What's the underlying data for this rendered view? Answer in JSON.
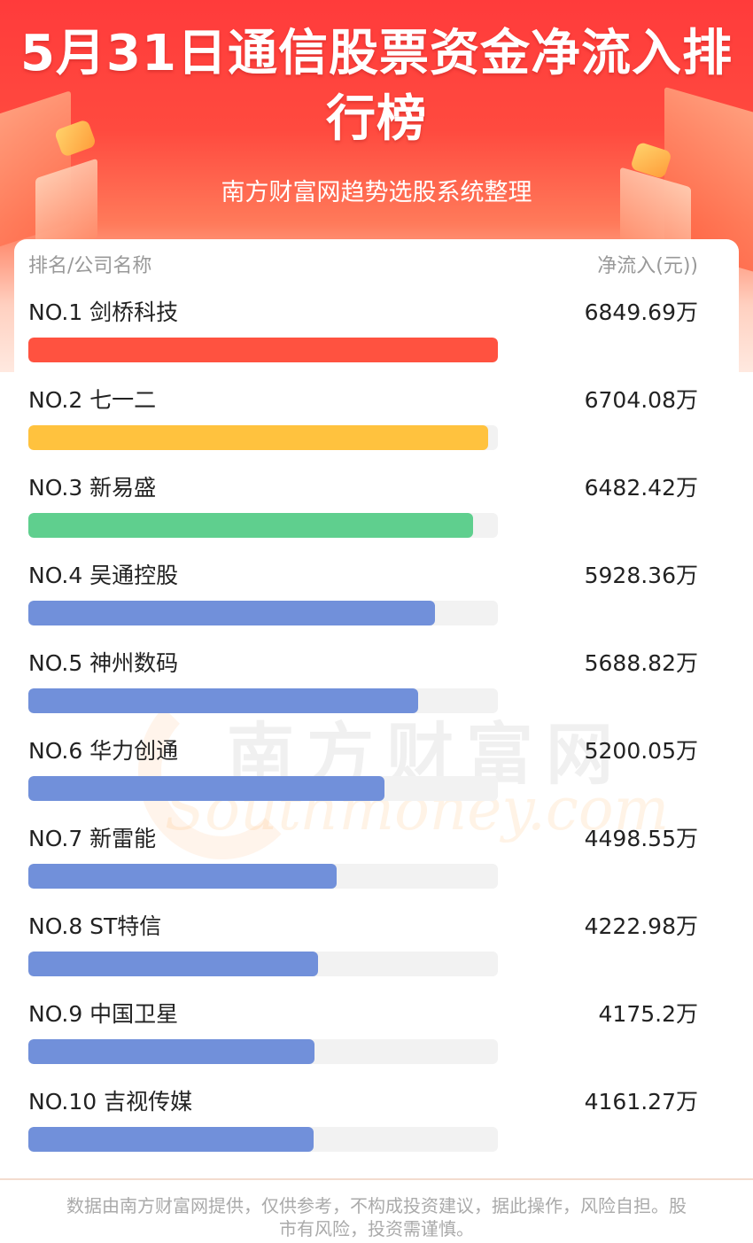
{
  "header": {
    "title": "5月31日通信股票资金净流入排行榜",
    "subtitle": "南方财富网趋势选股系统整理"
  },
  "table": {
    "col_left": "排名/公司名称",
    "col_right": "净流入(元))"
  },
  "watermark": {
    "cn": "南方财富网",
    "en": "Southmoney.com"
  },
  "colors": {
    "rank1": "#ff5240",
    "rank2": "#ffc23e",
    "rank3": "#5fcf8e",
    "others": "#7190da",
    "track": "#f2f2f2"
  },
  "chart_data": {
    "type": "bar",
    "orientation": "horizontal",
    "unit": "万",
    "categories": [
      "NO.1 剑桥科技",
      "NO.2 七一二",
      "NO.3 新易盛",
      "NO.4 吴通控股",
      "NO.5 神州数码",
      "NO.6 华力创通",
      "NO.7 新雷能",
      "NO.8 ST特信",
      "NO.9 中国卫星",
      "NO.10 吉视传媒"
    ],
    "values": [
      6849.69,
      6704.08,
      6482.42,
      5928.36,
      5688.82,
      5200.05,
      4498.55,
      4222.98,
      4175.2,
      4161.27
    ],
    "value_labels": [
      "6849.69万",
      "6704.08万",
      "6482.42万",
      "5928.36万",
      "5688.82万",
      "5200.05万",
      "4498.55万",
      "4222.98万",
      "4175.2万",
      "4161.27万"
    ],
    "title": "5月31日通信股票资金净流入排行榜",
    "xlabel": "",
    "ylabel": "",
    "grid": false,
    "legend": "none"
  },
  "footer": {
    "disclaimer": "数据由南方财富网提供，仅供参考，不构成投资建议，据此操作，风险自担。股市有风险，投资需谨慎。"
  }
}
